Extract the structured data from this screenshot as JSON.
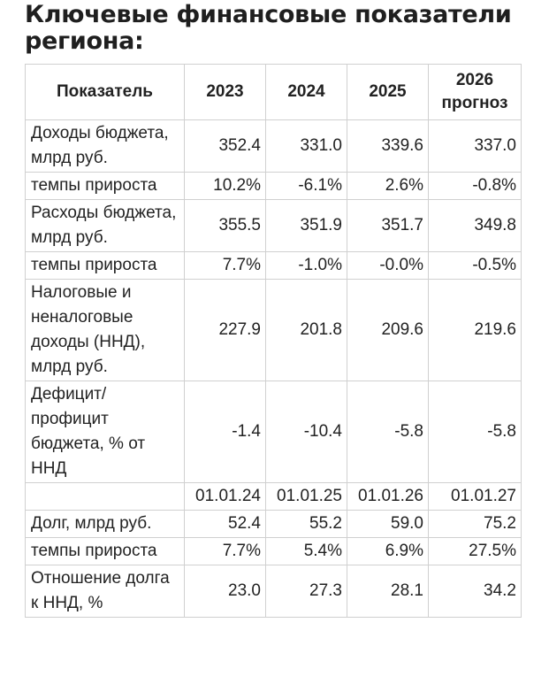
{
  "title": "Ключевые финансовые показатели региона:",
  "table": {
    "headers": {
      "indicator": "Показатель",
      "y2023": "2023",
      "y2024": "2024",
      "y2025": "2025",
      "y2026": "2026 прогноз"
    },
    "rows": [
      {
        "label": "Доходы бюджета, млрд руб.",
        "values": [
          "352.4",
          "331.0",
          "339.6",
          "337.0"
        ]
      },
      {
        "label": "темпы прироста",
        "values": [
          "10.2%",
          "-6.1%",
          "2.6%",
          "-0.8%"
        ]
      },
      {
        "label": "Расходы бюджета, млрд руб.",
        "values": [
          "355.5",
          "351.9",
          "351.7",
          "349.8"
        ]
      },
      {
        "label": "темпы прироста",
        "values": [
          "7.7%",
          "-1.0%",
          "-0.0%",
          "-0.5%"
        ]
      },
      {
        "label": "Налоговые и неналоговые доходы (ННД), млрд руб.",
        "values": [
          "227.9",
          "201.8",
          "209.6",
          "219.6"
        ]
      },
      {
        "label": "Дефицит/ профицит бюджета, % от ННД",
        "values": [
          "-1.4",
          "-10.4",
          "-5.8",
          "-5.8"
        ]
      },
      {
        "label": "",
        "values": [
          "01.01.24",
          "01.01.25",
          "01.01.26",
          "01.01.27"
        ]
      },
      {
        "label": "Долг, млрд руб.",
        "values": [
          "52.4",
          "55.2",
          "59.0",
          "75.2"
        ]
      },
      {
        "label": "темпы прироста",
        "values": [
          "7.7%",
          "5.4%",
          "6.9%",
          "27.5%"
        ]
      },
      {
        "label": "Отношение долга к ННД, %",
        "values": [
          "23.0",
          "27.3",
          "28.1",
          "34.2"
        ]
      }
    ]
  }
}
